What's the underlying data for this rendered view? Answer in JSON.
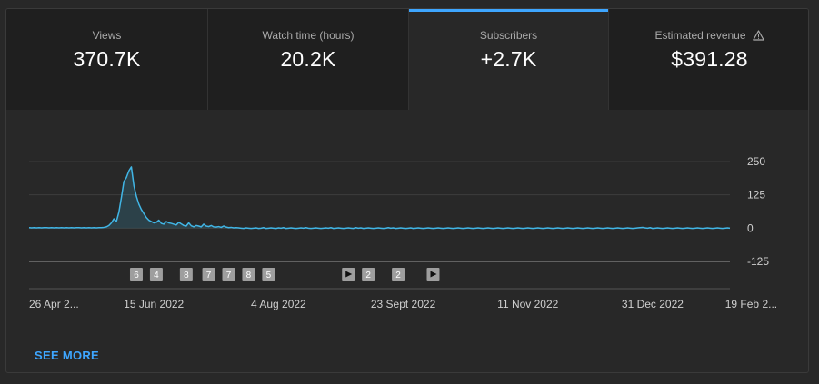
{
  "tabs": [
    {
      "label": "Views",
      "value": "370.7K",
      "active": false,
      "warning": false
    },
    {
      "label": "Watch time (hours)",
      "value": "20.2K",
      "active": false,
      "warning": false
    },
    {
      "label": "Subscribers",
      "value": "+2.7K",
      "active": true,
      "warning": false
    },
    {
      "label": "Estimated revenue",
      "value": "$391.28",
      "active": false,
      "warning": true
    }
  ],
  "colors": {
    "accent": "#3ea6ff",
    "line": "#41b6e6",
    "marker": "#9e9e9e"
  },
  "chart_data": {
    "type": "line",
    "series": [
      {
        "values": [
          2,
          1,
          2,
          1,
          2,
          1,
          2,
          2,
          1,
          2,
          1,
          2,
          1,
          2,
          1,
          2,
          1,
          2,
          1,
          2,
          2,
          1,
          2,
          1,
          2,
          1,
          2,
          1,
          2,
          2,
          3,
          5,
          10,
          20,
          35,
          25,
          60,
          115,
          175,
          190,
          215,
          230,
          160,
          120,
          90,
          70,
          55,
          40,
          30,
          25,
          20,
          22,
          30,
          18,
          15,
          25,
          20,
          18,
          15,
          12,
          22,
          16,
          10,
          8,
          20,
          9,
          5,
          10,
          8,
          5,
          15,
          8,
          6,
          10,
          5,
          4,
          6,
          3,
          8,
          4,
          2,
          3,
          1,
          2,
          1,
          0,
          -1,
          1,
          0,
          -1,
          0,
          1,
          -1,
          0,
          2,
          -1,
          0,
          1,
          0,
          -1,
          1,
          0,
          2,
          -1,
          0,
          1,
          0,
          -1,
          0,
          1,
          0,
          2,
          0,
          -1,
          0,
          1,
          0,
          -1,
          0,
          1,
          0,
          2,
          -1,
          0,
          1,
          0,
          -1,
          0,
          1,
          0,
          -1,
          2,
          0,
          1,
          -1,
          0,
          1,
          0,
          -1,
          0,
          1,
          0,
          -1,
          0,
          2,
          0,
          1,
          -1,
          0,
          1,
          0,
          -1,
          0,
          1,
          -1,
          0,
          1,
          0,
          -1,
          0,
          1,
          0,
          -1,
          0,
          1,
          0,
          -1,
          0,
          1,
          0,
          -1,
          0,
          1,
          0,
          -1,
          0,
          1,
          0,
          -1,
          0,
          1,
          0,
          -1,
          0,
          1,
          0,
          -1,
          0,
          1,
          0,
          -1,
          0,
          1,
          0,
          -1,
          0,
          1,
          0,
          -1,
          0,
          1,
          0,
          -1,
          0,
          1,
          0,
          -1,
          0,
          1,
          0,
          -1,
          0,
          1,
          0,
          -1,
          0,
          1,
          0,
          -1,
          0,
          1,
          0,
          -1,
          0,
          1,
          0,
          -1,
          0,
          1,
          0,
          -1,
          0,
          1,
          0,
          -1,
          0,
          1,
          0,
          -1,
          0,
          1,
          0,
          -1,
          0,
          1,
          2,
          3,
          1,
          0,
          2,
          -1,
          0,
          1,
          0,
          -1,
          0,
          1,
          0,
          -1,
          0,
          1,
          0,
          -1,
          0,
          1,
          0,
          -1,
          0,
          1,
          0,
          -1,
          0,
          1,
          0,
          -1,
          0,
          1,
          0,
          -1,
          0,
          1,
          0
        ]
      }
    ],
    "y_ticks": [
      "250",
      "125",
      "0",
      "-125"
    ],
    "y_tick_values": [
      250,
      125,
      0,
      -125
    ],
    "ylim": [
      -125,
      250
    ],
    "x_ticks": [
      "26 Apr 2...",
      "15 Jun 2022",
      "4 Aug 2022",
      "23 Sept 2022",
      "11 Nov 2022",
      "31 Dec 2022",
      "19 Feb 2..."
    ],
    "x_tick_index": [
      0,
      50,
      100,
      150,
      200,
      250,
      300
    ],
    "grid": true,
    "markers": [
      {
        "label": "6",
        "index": 43
      },
      {
        "label": "4",
        "index": 51
      },
      {
        "label": "8",
        "index": 63
      },
      {
        "label": "7",
        "index": 72
      },
      {
        "label": "7",
        "index": 80
      },
      {
        "label": "8",
        "index": 88
      },
      {
        "label": "5",
        "index": 96
      },
      {
        "label": "",
        "play": true,
        "index": 128
      },
      {
        "label": "2",
        "index": 136
      },
      {
        "label": "2",
        "index": 148
      },
      {
        "label": "",
        "play": true,
        "index": 162
      }
    ]
  },
  "see_more": "SEE MORE"
}
